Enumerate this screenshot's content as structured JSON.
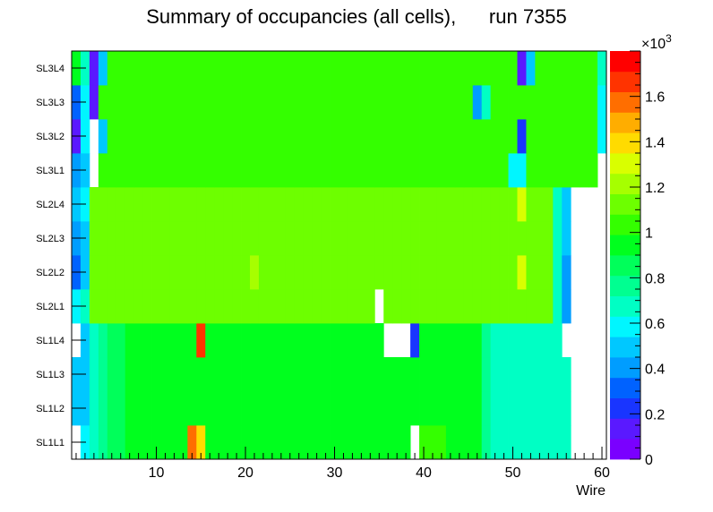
{
  "chart_data": {
    "type": "heatmap",
    "title": "Summary of occupancies (all cells),      run 7355",
    "xlabel": "Wire",
    "ylabel": "",
    "x_range": [
      0.5,
      60.5
    ],
    "x_ticks": [
      10,
      20,
      30,
      40,
      50,
      60
    ],
    "y_categories": [
      "SL1L1",
      "SL1L2",
      "SL1L3",
      "SL1L4",
      "SL2L1",
      "SL2L2",
      "SL2L3",
      "SL2L4",
      "SL3L1",
      "SL3L2",
      "SL3L3",
      "SL3L4"
    ],
    "z_range": [
      0,
      1800
    ],
    "colorbar_ticks": [
      0,
      0.2,
      0.4,
      0.6,
      0.8,
      1,
      1.2,
      1.4,
      1.6
    ],
    "colorbar_exponent": "×10³",
    "z_multiplier_base": "10",
    "z_multiplier_exp": "3",
    "grid": false,
    "values": [
      [
        0,
        550,
        650,
        750,
        850,
        850,
        950,
        950,
        950,
        950,
        950,
        950,
        950,
        1600,
        1400,
        950,
        950,
        950,
        950,
        950,
        950,
        950,
        950,
        950,
        950,
        950,
        950,
        950,
        950,
        950,
        950,
        950,
        950,
        950,
        950,
        950,
        950,
        950,
        0,
        1000,
        1000,
        1000,
        950,
        950,
        950,
        950,
        800,
        650,
        650,
        650,
        650,
        650,
        650,
        650,
        650,
        650,
        0,
        0,
        0,
        0
      ],
      [
        450,
        500,
        650,
        750,
        850,
        850,
        950,
        950,
        950,
        950,
        950,
        950,
        950,
        950,
        950,
        950,
        950,
        950,
        950,
        950,
        950,
        950,
        950,
        950,
        950,
        950,
        950,
        950,
        950,
        950,
        950,
        950,
        950,
        950,
        950,
        950,
        950,
        950,
        950,
        950,
        950,
        950,
        950,
        950,
        950,
        950,
        800,
        650,
        650,
        650,
        650,
        650,
        650,
        650,
        650,
        650,
        0,
        0,
        0,
        0
      ],
      [
        450,
        500,
        650,
        750,
        850,
        850,
        950,
        950,
        950,
        950,
        950,
        950,
        950,
        950,
        950,
        950,
        950,
        950,
        950,
        950,
        950,
        950,
        950,
        950,
        950,
        950,
        950,
        950,
        950,
        950,
        950,
        950,
        950,
        950,
        950,
        950,
        950,
        950,
        950,
        950,
        950,
        950,
        950,
        950,
        950,
        950,
        800,
        700,
        700,
        700,
        700,
        700,
        700,
        700,
        700,
        650,
        0,
        0,
        0,
        0
      ],
      [
        0,
        500,
        650,
        750,
        850,
        850,
        950,
        950,
        950,
        950,
        950,
        950,
        950,
        950,
        1700,
        950,
        950,
        950,
        950,
        950,
        950,
        950,
        950,
        950,
        950,
        950,
        950,
        950,
        950,
        950,
        950,
        950,
        950,
        950,
        950,
        0,
        0,
        0,
        200,
        950,
        950,
        950,
        950,
        950,
        950,
        950,
        800,
        700,
        700,
        700,
        700,
        700,
        700,
        700,
        700,
        0,
        0,
        0,
        0,
        0
      ],
      [
        550,
        650,
        1150,
        1150,
        1150,
        1150,
        1150,
        1150,
        1150,
        1150,
        1150,
        1150,
        1150,
        1150,
        1150,
        1150,
        1150,
        1150,
        1150,
        1150,
        1150,
        1150,
        1150,
        1150,
        1150,
        1150,
        1150,
        1150,
        1150,
        1150,
        1150,
        1150,
        1150,
        1150,
        0,
        1150,
        1150,
        1150,
        1150,
        1150,
        1150,
        1150,
        1150,
        1150,
        1150,
        1150,
        1150,
        1150,
        1150,
        1150,
        1150,
        1150,
        1150,
        1150,
        650,
        400,
        0,
        0,
        0,
        0
      ],
      [
        350,
        500,
        1150,
        1150,
        1150,
        1150,
        1150,
        1150,
        1150,
        1150,
        1150,
        1150,
        1150,
        1150,
        1150,
        1150,
        1150,
        1150,
        1150,
        1150,
        1200,
        1150,
        1150,
        1150,
        1150,
        1150,
        1150,
        1150,
        1150,
        1150,
        1150,
        1150,
        1150,
        1150,
        1150,
        1150,
        1150,
        1150,
        1150,
        1150,
        1150,
        1150,
        1150,
        1150,
        1150,
        1150,
        1150,
        1150,
        1150,
        1150,
        1300,
        1150,
        1150,
        1150,
        650,
        400,
        0,
        0,
        0,
        0
      ],
      [
        400,
        500,
        1150,
        1150,
        1150,
        1150,
        1150,
        1150,
        1150,
        1150,
        1150,
        1150,
        1150,
        1150,
        1150,
        1150,
        1150,
        1150,
        1150,
        1150,
        1150,
        1150,
        1150,
        1150,
        1150,
        1150,
        1150,
        1150,
        1150,
        1150,
        1150,
        1150,
        1150,
        1150,
        1150,
        1150,
        1150,
        1150,
        1150,
        1150,
        1150,
        1150,
        1150,
        1150,
        1150,
        1150,
        1150,
        1150,
        1150,
        1150,
        1150,
        1150,
        1150,
        1150,
        700,
        450,
        0,
        0,
        0,
        0
      ],
      [
        450,
        600,
        1150,
        1150,
        1150,
        1150,
        1150,
        1150,
        1150,
        1150,
        1150,
        1150,
        1150,
        1150,
        1150,
        1150,
        1150,
        1150,
        1150,
        1150,
        1150,
        1150,
        1150,
        1150,
        1150,
        1150,
        1150,
        1150,
        1150,
        1150,
        1150,
        1150,
        1150,
        1150,
        1150,
        1150,
        1150,
        1150,
        1150,
        1150,
        1150,
        1150,
        1150,
        1150,
        1150,
        1150,
        1150,
        1150,
        1150,
        1150,
        1300,
        1150,
        1150,
        1150,
        700,
        450,
        0,
        0,
        0,
        0
      ],
      [
        400,
        500,
        0,
        1050,
        1050,
        1050,
        1050,
        1050,
        1050,
        1050,
        1050,
        1050,
        1050,
        1050,
        1050,
        1050,
        1050,
        1050,
        1050,
        1050,
        1050,
        1050,
        1050,
        1050,
        1050,
        1050,
        1050,
        1050,
        1050,
        1050,
        1050,
        1050,
        1050,
        1050,
        1050,
        1050,
        1050,
        1050,
        1050,
        1050,
        1050,
        1050,
        1050,
        1050,
        1050,
        1050,
        1050,
        1050,
        1050,
        600,
        600,
        1050,
        1050,
        1050,
        1050,
        1050,
        1050,
        1050,
        1050,
        0
      ],
      [
        150,
        550,
        0,
        450,
        1050,
        1050,
        1050,
        1050,
        1050,
        1050,
        1050,
        1050,
        1050,
        1050,
        1050,
        1050,
        1050,
        1050,
        1050,
        1050,
        1050,
        1050,
        1050,
        1050,
        1050,
        1050,
        1050,
        1050,
        1050,
        1050,
        1050,
        1050,
        1050,
        1050,
        1050,
        1050,
        1050,
        1050,
        1050,
        1050,
        1050,
        1050,
        1050,
        1050,
        1050,
        1050,
        1050,
        1050,
        1050,
        1050,
        200,
        1050,
        1050,
        1050,
        1050,
        1050,
        1050,
        1050,
        1050,
        550
      ],
      [
        300,
        550,
        150,
        1050,
        1050,
        1050,
        1050,
        1050,
        1050,
        1050,
        1050,
        1050,
        1050,
        1050,
        1050,
        1050,
        1050,
        1050,
        1050,
        1050,
        1050,
        1050,
        1050,
        1050,
        1050,
        1050,
        1050,
        1050,
        1050,
        1050,
        1050,
        1050,
        1050,
        1050,
        1050,
        1050,
        1050,
        1050,
        1050,
        1050,
        1050,
        1050,
        1050,
        1050,
        1050,
        400,
        650,
        1050,
        1050,
        1050,
        1050,
        1050,
        1050,
        1050,
        1050,
        1050,
        1050,
        1050,
        1050,
        550
      ],
      [
        950,
        650,
        150,
        450,
        1050,
        1050,
        1050,
        1050,
        1050,
        1050,
        1050,
        1050,
        1050,
        1050,
        1050,
        1050,
        1050,
        1050,
        1050,
        1050,
        1050,
        1050,
        1050,
        1050,
        1050,
        1050,
        1050,
        1050,
        1050,
        1050,
        1050,
        1050,
        1050,
        1050,
        1050,
        1050,
        1050,
        1050,
        1050,
        1050,
        1050,
        1050,
        1050,
        1050,
        1050,
        1050,
        1050,
        1050,
        1050,
        1050,
        150,
        450,
        1050,
        1050,
        1050,
        1050,
        1050,
        1050,
        1050,
        700
      ]
    ]
  },
  "colors": {
    "palette": [
      "#7a00ff",
      "#5a19ff",
      "#1935ff",
      "#0062ff",
      "#009dff",
      "#00c8ff",
      "#00f6ff",
      "#00ffc4",
      "#00ff91",
      "#00ff5a",
      "#00ff1e",
      "#34ff00",
      "#6dff00",
      "#a6ff00",
      "#d9ff00",
      "#ffdb00",
      "#ffad00",
      "#ff6e00",
      "#ff3300",
      "#ff0000"
    ],
    "empty": "#ffffff",
    "axis": "#000000"
  }
}
